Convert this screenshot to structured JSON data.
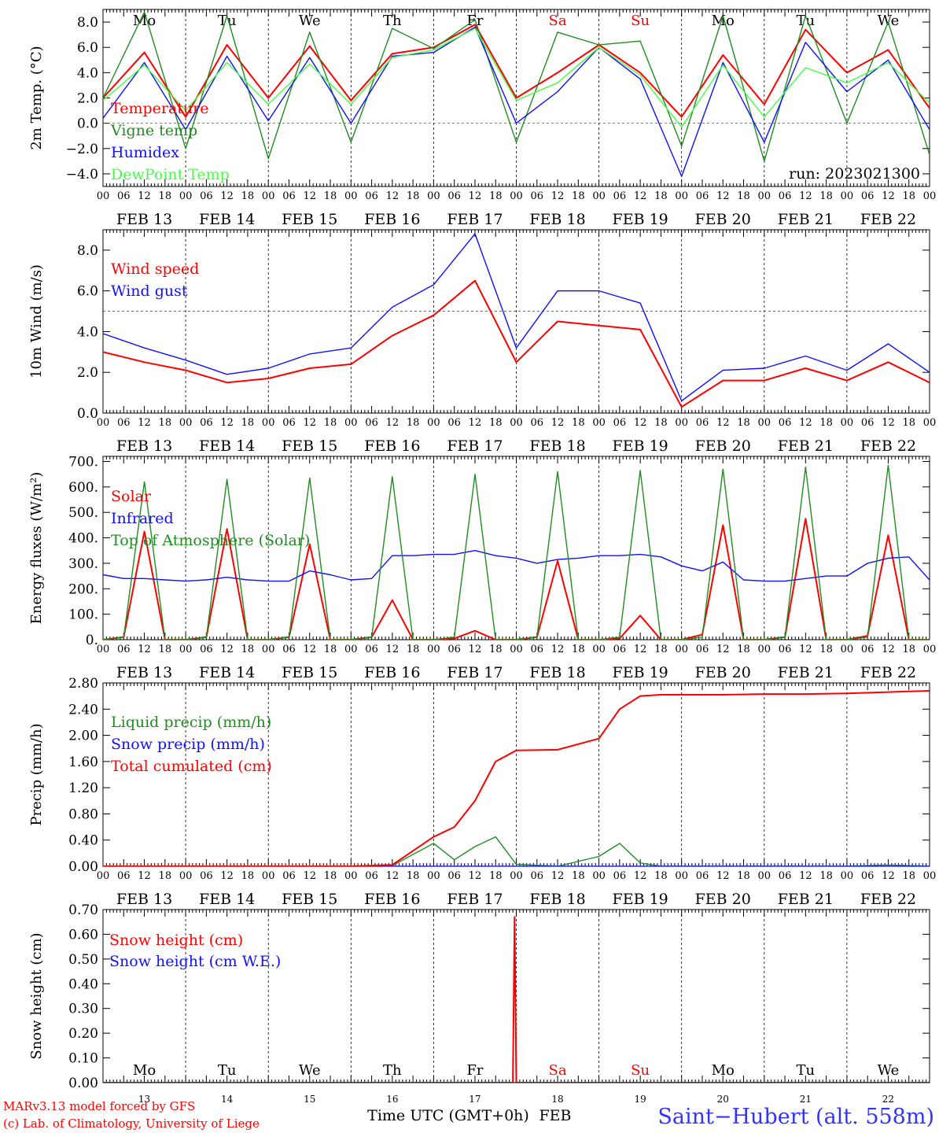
{
  "colors": {
    "red": "#ff0000",
    "green": "#228b22",
    "blue": "#1010ff",
    "light_green": "#44ff44",
    "black": "#000000",
    "station_blue": "#3333ff"
  },
  "x_axis": {
    "hour_labels": [
      "00",
      "06",
      "12",
      "18"
    ],
    "final_hour_label": "00",
    "dates": [
      "FEB 13",
      "FEB 14",
      "FEB 15",
      "FEB 16",
      "FEB 17",
      "FEB 18",
      "FEB 19",
      "FEB 20",
      "FEB 21",
      "FEB 22"
    ],
    "weekdays": [
      "Mo",
      "Tu",
      "We",
      "Th",
      "Fr",
      "Sa",
      "Su",
      "Mo",
      "Tu",
      "We"
    ],
    "weekday_colors": [
      "black",
      "black",
      "black",
      "black",
      "black",
      "red",
      "red",
      "black",
      "black",
      "black"
    ],
    "day_numbers": [
      "13",
      "14",
      "15",
      "16",
      "17",
      "18",
      "19",
      "20",
      "21",
      "22"
    ]
  },
  "chart_data": [
    {
      "type": "line",
      "ylabel": "2m Temp. (°C)",
      "ylim": [
        -5,
        9
      ],
      "yticks": [
        "8.0",
        "6.0",
        "4.0",
        "2.0",
        "0.0",
        "−2.0",
        "−4.0"
      ],
      "reference_line": 0,
      "annotation": "run: 2023021300",
      "x": [
        "13 00",
        "13 12",
        "14 00",
        "14 12",
        "15 00",
        "15 12",
        "16 00",
        "16 12",
        "17 00",
        "17 12",
        "18 00",
        "18 12",
        "19 00",
        "19 12",
        "20 00",
        "20 12",
        "21 00",
        "21 12",
        "22 00",
        "22 12",
        "23 00"
      ],
      "series": [
        {
          "name": "Temperature",
          "color": "red",
          "values": [
            2.0,
            5.6,
            0.5,
            6.2,
            2.0,
            6.1,
            1.8,
            5.5,
            6.0,
            7.8,
            2.0,
            4.0,
            6.2,
            4.0,
            0.5,
            5.4,
            1.5,
            7.4,
            4.0,
            5.8,
            1.2
          ]
        },
        {
          "name": "Vigne temp",
          "color": "green",
          "values": [
            2.0,
            8.8,
            -2.0,
            8.5,
            -2.8,
            7.2,
            -1.5,
            7.5,
            5.9,
            8.2,
            -1.5,
            7.2,
            6.2,
            6.5,
            -1.8,
            8.5,
            -3.0,
            8.5,
            0.0,
            8.0,
            -2.5
          ]
        },
        {
          "name": "Humidex",
          "color": "blue",
          "values": [
            0.4,
            4.8,
            -0.5,
            5.3,
            0.2,
            5.2,
            0.0,
            5.3,
            5.6,
            7.6,
            0.0,
            2.5,
            6.0,
            3.5,
            -4.2,
            4.8,
            -1.5,
            6.4,
            2.5,
            5.0,
            -0.5
          ]
        },
        {
          "name": "DewPoint Temp",
          "color": "light_green",
          "values": [
            1.8,
            4.6,
            1.0,
            4.8,
            1.5,
            4.7,
            1.5,
            5.2,
            5.8,
            7.5,
            1.8,
            3.2,
            6.0,
            3.8,
            -0.3,
            4.6,
            0.5,
            4.4,
            3.2,
            4.8,
            1.6
          ]
        }
      ]
    },
    {
      "type": "line",
      "ylabel": "10m Wind (m/s)",
      "ylim": [
        0,
        9
      ],
      "yticks": [
        "8.0",
        "6.0",
        "4.0",
        "2.0",
        "0.0"
      ],
      "reference_line": 5,
      "x": [
        "13 00",
        "13 12",
        "14 00",
        "14 12",
        "15 00",
        "15 12",
        "16 00",
        "16 12",
        "17 00",
        "17 12",
        "18 00",
        "18 12",
        "19 00",
        "19 12",
        "20 00",
        "20 12",
        "21 00",
        "21 12",
        "22 00",
        "22 12",
        "23 00"
      ],
      "series": [
        {
          "name": "Wind speed",
          "color": "red",
          "values": [
            3.0,
            2.5,
            2.1,
            1.5,
            1.7,
            2.2,
            2.4,
            3.8,
            4.8,
            6.5,
            2.5,
            4.5,
            4.3,
            4.1,
            0.3,
            1.6,
            1.6,
            2.2,
            1.6,
            2.5,
            1.5
          ]
        },
        {
          "name": "Wind gust",
          "color": "blue",
          "values": [
            3.9,
            3.2,
            2.6,
            1.9,
            2.2,
            2.9,
            3.2,
            5.2,
            6.3,
            8.8,
            3.2,
            6.0,
            6.0,
            5.4,
            0.6,
            2.1,
            2.2,
            2.8,
            2.1,
            3.4,
            2.0
          ]
        }
      ]
    },
    {
      "type": "line",
      "ylabel": "Energy fluxes (W/m²)",
      "ylim": [
        0,
        720
      ],
      "yticks": [
        "700.",
        "600.",
        "500.",
        "400.",
        "300.",
        "200.",
        "100.",
        "0."
      ],
      "x": [
        "13 00",
        "13 06",
        "13 12",
        "13 18",
        "14 00",
        "14 06",
        "14 12",
        "14 18",
        "15 00",
        "15 06",
        "15 12",
        "15 18",
        "16 00",
        "16 06",
        "16 12",
        "16 18",
        "17 00",
        "17 06",
        "17 12",
        "17 18",
        "18 00",
        "18 06",
        "18 12",
        "18 18",
        "19 00",
        "19 06",
        "19 12",
        "19 18",
        "20 00",
        "20 06",
        "20 12",
        "20 18",
        "21 00",
        "21 06",
        "21 12",
        "21 18",
        "22 00",
        "22 06",
        "22 12",
        "22 18",
        "23 00"
      ],
      "series": [
        {
          "name": "Solar",
          "color": "red",
          "values": [
            0,
            10,
            425,
            0,
            0,
            10,
            435,
            0,
            0,
            10,
            375,
            0,
            0,
            10,
            155,
            0,
            0,
            5,
            35,
            0,
            0,
            10,
            310,
            0,
            0,
            5,
            95,
            0,
            0,
            20,
            450,
            0,
            0,
            10,
            475,
            0,
            0,
            15,
            410,
            0,
            0
          ]
        },
        {
          "name": "Infrared",
          "color": "blue",
          "values": [
            255,
            240,
            240,
            235,
            230,
            235,
            245,
            235,
            230,
            230,
            270,
            255,
            235,
            240,
            330,
            330,
            335,
            335,
            350,
            330,
            320,
            300,
            315,
            320,
            330,
            330,
            335,
            325,
            290,
            270,
            305,
            235,
            230,
            230,
            240,
            250,
            250,
            300,
            320,
            325,
            235
          ]
        },
        {
          "name": "Top of Atmosphere (Solar)",
          "color": "green",
          "values": [
            0,
            10,
            620,
            0,
            0,
            10,
            630,
            0,
            0,
            10,
            635,
            0,
            0,
            10,
            640,
            0,
            0,
            10,
            650,
            0,
            0,
            10,
            660,
            0,
            0,
            10,
            665,
            0,
            0,
            10,
            670,
            0,
            0,
            10,
            678,
            0,
            0,
            10,
            685,
            0,
            0
          ]
        }
      ]
    },
    {
      "type": "line",
      "ylabel": "Precip (mm/h)",
      "ylim": [
        0,
        2.8
      ],
      "yticks": [
        "2.80",
        "2.40",
        "2.00",
        "1.60",
        "1.20",
        "0.80",
        "0.40",
        "0.00"
      ],
      "x": [
        "13 00",
        "13 12",
        "14 00",
        "14 12",
        "15 00",
        "15 12",
        "16 00",
        "16 12",
        "17 00",
        "17 06",
        "17 12",
        "17 18",
        "18 00",
        "18 12",
        "19 00",
        "19 06",
        "19 12",
        "19 18",
        "20 00",
        "20 12",
        "21 00",
        "21 12",
        "22 00",
        "22 12",
        "23 00"
      ],
      "series": [
        {
          "name": "Liquid precip (mm/h)",
          "color": "green",
          "values": [
            0,
            0,
            0,
            0,
            0,
            0,
            0,
            0.01,
            0.35,
            0.1,
            0.3,
            0.45,
            0.03,
            0,
            0.15,
            0.35,
            0.05,
            0,
            0,
            0,
            0,
            0,
            0,
            0.02,
            0
          ]
        },
        {
          "name": "Snow precip (mm/h)",
          "color": "blue",
          "values": [
            0,
            0,
            0,
            0,
            0,
            0,
            0,
            0,
            0,
            0,
            0,
            0,
            0,
            0,
            0,
            0,
            0,
            0,
            0,
            0,
            0,
            0,
            0,
            0,
            0
          ]
        },
        {
          "name": "Total cumulated (cm)",
          "color": "red",
          "values": [
            0,
            0,
            0,
            0,
            0,
            0,
            0,
            0.02,
            0.45,
            0.6,
            1.0,
            1.6,
            1.77,
            1.78,
            1.95,
            2.4,
            2.6,
            2.62,
            2.62,
            2.62,
            2.63,
            2.63,
            2.64,
            2.66,
            2.68
          ]
        }
      ]
    },
    {
      "type": "line",
      "ylabel": "Snow height (cm)",
      "ylim": [
        0,
        0.7
      ],
      "yticks": [
        "0.70",
        "0.60",
        "0.50",
        "0.40",
        "0.30",
        "0.20",
        "0.10",
        "0.00"
      ],
      "x": [
        "13 00",
        "17 23",
        "17 23.5",
        "18 00",
        "23 00"
      ],
      "series": [
        {
          "name": "Snow height (cm)",
          "color": "red",
          "values": [
            0,
            0,
            0.67,
            0,
            0
          ]
        },
        {
          "name": "Snow height (cm W.E.)",
          "color": "blue",
          "values": [
            0,
            0,
            0,
            0,
            0
          ]
        }
      ]
    }
  ],
  "footer": {
    "model_line": "MARv3.13 model forced by GFS",
    "lab_line": "(c) Lab. of Climatology, University of Liege",
    "axis_title": "Time UTC (GMT+0h)",
    "month": "FEB",
    "station": "Saint−Hubert (alt. 558m)"
  }
}
